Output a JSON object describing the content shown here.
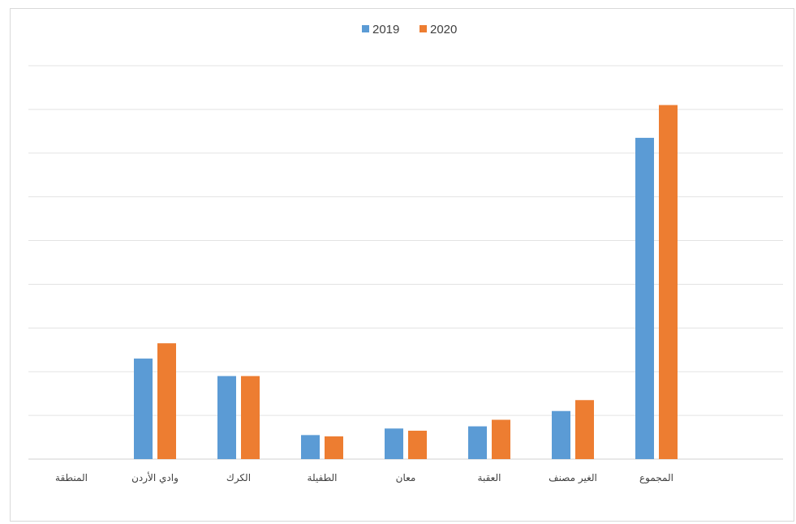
{
  "chart_data": {
    "type": "bar",
    "title": "",
    "xlabel": "",
    "ylabel": "",
    "categories": [
      "المنطقة",
      "وادي الأردن",
      "الكرك",
      "الطفيلة",
      "معان",
      "العقبة",
      "الغير مصنف",
      "المجموع"
    ],
    "series": [
      {
        "name": "2019",
        "color": "#5b9bd5",
        "values": [
          0,
          2.3,
          1.9,
          0.55,
          0.7,
          0.75,
          1.1,
          7.35
        ]
      },
      {
        "name": "2020",
        "color": "#ed7d31",
        "values": [
          0,
          2.65,
          1.9,
          0.52,
          0.65,
          0.9,
          1.35,
          8.1
        ]
      }
    ],
    "ylim": [
      0,
      9
    ],
    "grid": true,
    "y_tick_labels_visible": false,
    "legend_position": "top-center"
  }
}
